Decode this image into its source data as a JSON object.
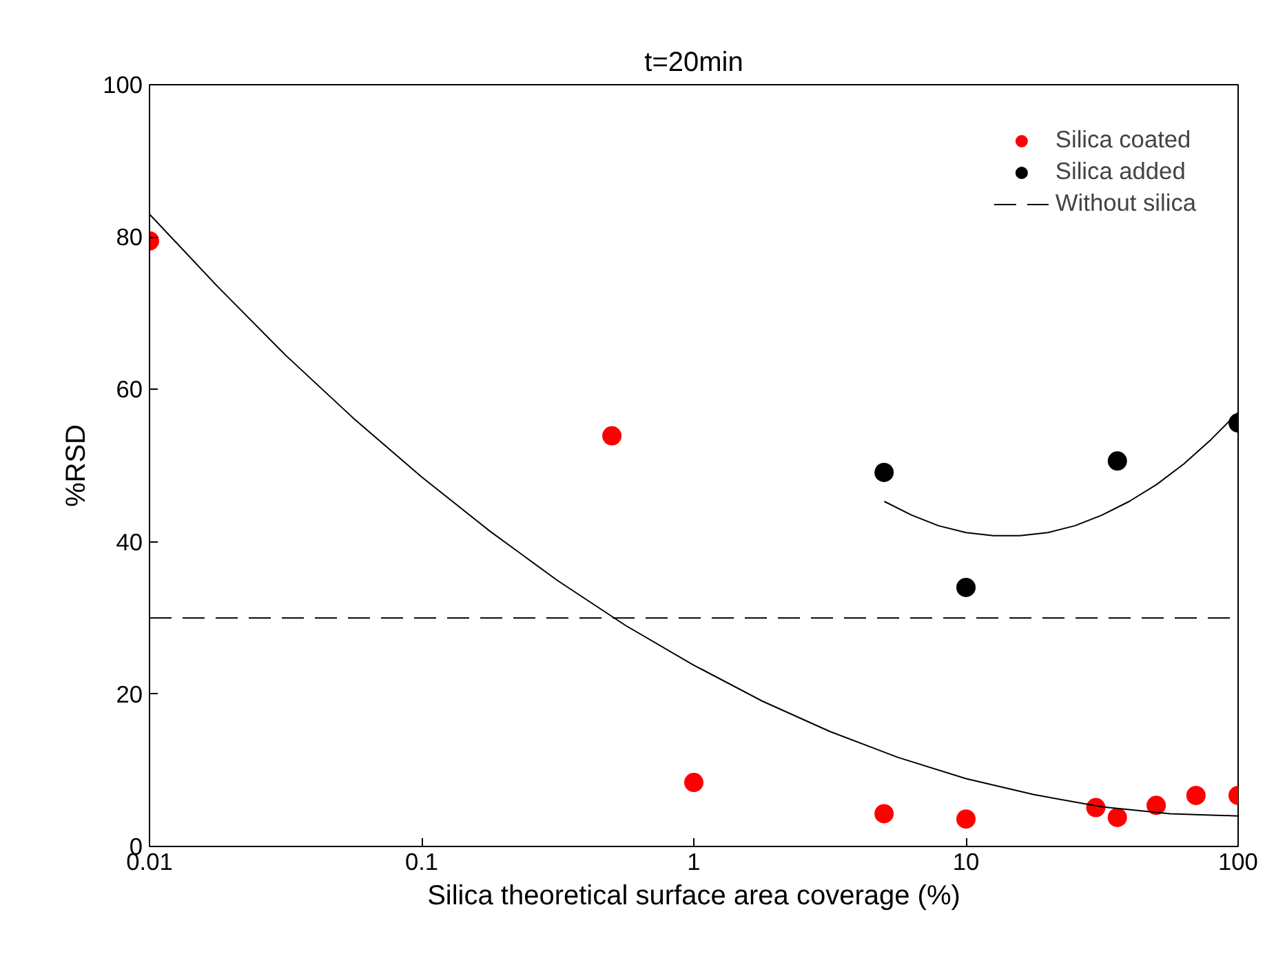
{
  "chart_data": {
    "type": "scatter",
    "title": "t=20min",
    "xlabel": "Silica theoretical surface area coverage (%)",
    "ylabel": "%RSD",
    "log": "x",
    "xlim": [
      0.01,
      100
    ],
    "ylim": [
      0,
      100
    ],
    "xticks": [
      0.01,
      0.1,
      1,
      10,
      100
    ],
    "yticks": [
      0,
      20,
      40,
      60,
      80,
      100
    ],
    "grid": false,
    "legend": "top right",
    "series": [
      {
        "name": "Silica coated",
        "marker": "circle",
        "color": "#ff0000",
        "x": [
          0.01,
          0.5,
          1,
          5,
          10,
          30,
          36,
          50,
          70,
          100
        ],
        "values": [
          79.5,
          53.9,
          8.4,
          4.3,
          3.6,
          5.1,
          3.8,
          5.4,
          6.7,
          6.7
        ]
      },
      {
        "name": "Silica added",
        "marker": "circle",
        "color": "#000000",
        "x": [
          5,
          10,
          36,
          100
        ],
        "values": [
          49.1,
          34.0,
          50.6,
          55.6
        ]
      },
      {
        "type": "line",
        "marker": "none",
        "color": "#000000",
        "line_style": "solid",
        "x": [
          0.01,
          0.0178,
          0.0316,
          0.0562,
          0.1,
          0.178,
          0.316,
          0.562,
          1,
          1.78,
          3.16,
          5.62,
          10,
          17.8,
          31.6,
          56.2,
          100
        ],
        "values": [
          83.0,
          73.5,
          64.5,
          56.2,
          48.5,
          41.4,
          34.9,
          29.0,
          23.8,
          19.1,
          15.1,
          11.7,
          8.9,
          6.8,
          5.2,
          4.3,
          4.0
        ]
      },
      {
        "type": "line",
        "marker": "none",
        "color": "#000000",
        "line_style": "solid",
        "x": [
          5.01,
          6.31,
          7.94,
          10,
          12.6,
          15.8,
          20,
          25.1,
          31.6,
          39.8,
          50.1,
          63.1,
          79.4,
          100
        ],
        "values": [
          45.3,
          43.5,
          42.1,
          41.2,
          40.8,
          40.8,
          41.2,
          42.1,
          43.5,
          45.3,
          47.5,
          50.2,
          53.4,
          57.0
        ]
      }
    ],
    "ref_lines": [
      {
        "axis": "y",
        "value": 30,
        "label": "Without silica",
        "color": "#000000",
        "line_style": "dashed"
      }
    ]
  }
}
